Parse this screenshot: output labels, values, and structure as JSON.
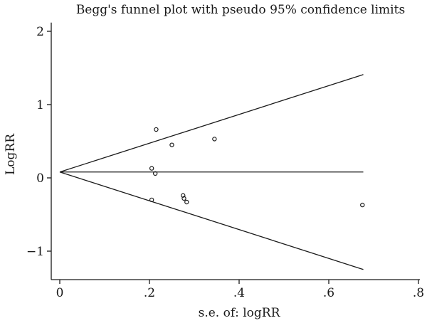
{
  "chart_data": {
    "type": "scatter",
    "title": "Begg's funnel plot with pseudo 95% confidence limits",
    "xlabel": "s.e. of: logRR",
    "ylabel": "LogRR",
    "xlim": [
      0,
      0.8
    ],
    "ylim": [
      -1.35,
      2.1
    ],
    "x_ticks": [
      0,
      0.2,
      0.4,
      0.6,
      0.8
    ],
    "x_tick_labels": [
      "0",
      ".2",
      ".4",
      ".6",
      ".8"
    ],
    "y_ticks": [
      -1,
      0,
      1,
      2
    ],
    "y_tick_labels": [
      "−1",
      "0",
      "1",
      "2"
    ],
    "grid": false,
    "legend": "none",
    "points": [
      {
        "x": 0.215,
        "y": 0.66
      },
      {
        "x": 0.345,
        "y": 0.53
      },
      {
        "x": 0.25,
        "y": 0.45
      },
      {
        "x": 0.205,
        "y": 0.13
      },
      {
        "x": 0.213,
        "y": 0.06
      },
      {
        "x": 0.205,
        "y": -0.3
      },
      {
        "x": 0.275,
        "y": -0.24
      },
      {
        "x": 0.277,
        "y": -0.28
      },
      {
        "x": 0.283,
        "y": -0.33
      },
      {
        "x": 0.675,
        "y": -0.37
      }
    ],
    "pooled_estimate": 0.08,
    "pseudo_limits": {
      "x_end": 0.677,
      "upper_end": 1.41,
      "lower_end": -1.25
    }
  }
}
